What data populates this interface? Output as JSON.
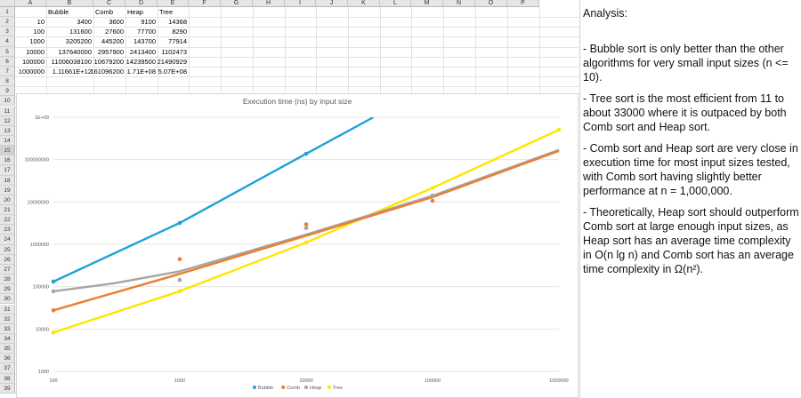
{
  "spreadsheet": {
    "columns": [
      "A",
      "B",
      "C",
      "D",
      "E",
      "F",
      "G",
      "H",
      "I",
      "J",
      "K",
      "L",
      "M",
      "N",
      "O",
      "P"
    ],
    "rows": [
      "1",
      "2",
      "3",
      "4",
      "5",
      "6",
      "7",
      "8",
      "9",
      "10",
      "11",
      "12",
      "13",
      "14",
      "15",
      "16",
      "17",
      "18",
      "19",
      "20",
      "21",
      "22",
      "23",
      "24",
      "25",
      "26",
      "27",
      "28",
      "29",
      "30",
      "31",
      "32",
      "33",
      "34",
      "35",
      "36",
      "37",
      "38",
      "39"
    ],
    "selected_row": "15",
    "table": {
      "headers": [
        "Bubble",
        "Comb",
        "Heap",
        "Tree"
      ],
      "rows": [
        [
          "10",
          "3400",
          "3600",
          "9100",
          "14368"
        ],
        [
          "100",
          "131600",
          "27600",
          "77700",
          "8290"
        ],
        [
          "1000",
          "3205200",
          "445200",
          "143700",
          "77914"
        ],
        [
          "10000",
          "137640000",
          "2957900",
          "2413400",
          "1102473"
        ],
        [
          "100000",
          "11006038100",
          "10679200",
          "14239500",
          "21490929"
        ],
        [
          "1000000",
          "1.11661E+12",
          "161096200",
          "1.71E+08",
          "5.07E+08"
        ]
      ]
    }
  },
  "chart_data": {
    "type": "scatter",
    "title": "Execution time (ns) by input size",
    "x_scale": "log",
    "y_scale": "log",
    "xlim": [
      100,
      1000000
    ],
    "ylim": [
      1000,
      1000000000
    ],
    "x_ticks": [
      "100",
      "1000",
      "10000",
      "100000",
      "1000000"
    ],
    "y_ticks": [
      "1000",
      "10000",
      "100000",
      "1000000",
      "10000000",
      "100000000",
      "1E+09"
    ],
    "legend_position": "bottom",
    "grid": "horizontal",
    "series": [
      {
        "name": "Bubble",
        "color": "#1fa2d8",
        "x": [
          100,
          1000,
          10000
        ],
        "y": [
          131600,
          3205200,
          137640000
        ]
      },
      {
        "name": "Comb",
        "color": "#ed7d31",
        "x": [
          100,
          1000,
          10000,
          100000
        ],
        "y": [
          27600,
          445200,
          2957900,
          10679200
        ]
      },
      {
        "name": "Heap",
        "color": "#a5a5a5",
        "x": [
          100,
          1000,
          10000,
          100000
        ],
        "y": [
          77700,
          143700,
          2413400,
          14239500
        ]
      },
      {
        "name": "Tree",
        "color": "#ffe600",
        "x": [
          100,
          1000,
          10000,
          100000,
          1000000
        ],
        "y": [
          8290,
          77914,
          1102473,
          21490929,
          507000000
        ]
      }
    ],
    "trendlines": [
      {
        "series": "Bubble",
        "x": [
          100,
          1000,
          10000,
          34000
        ],
        "y": [
          131600,
          3205200,
          137640000,
          1000000000
        ]
      },
      {
        "series": "Comb",
        "x": [
          100,
          1000,
          10000,
          100000,
          1000000
        ],
        "y": [
          27600,
          200000,
          1600000,
          13000000,
          160000000
        ]
      },
      {
        "series": "Heap",
        "x": [
          100,
          300,
          1000,
          10000,
          100000,
          1000000
        ],
        "y": [
          77700,
          120000,
          230000,
          1700000,
          14000000,
          170000000
        ]
      },
      {
        "series": "Tree",
        "x": [
          100,
          1000,
          10000,
          100000,
          1000000
        ],
        "y": [
          8290,
          77914,
          1102473,
          21490929,
          507000000
        ]
      }
    ]
  },
  "notes": {
    "heading": "Analysis:",
    "paragraphs": [
      "- Bubble sort is only better than the other algorithms for very small input sizes (n <= 10).",
      "- Tree sort is the most efficient from 11 to about 33000 where it is outpaced by both Comb sort and Heap sort.",
      "- Comb sort and Heap sort are very close in execution time for most input sizes tested, with Comb sort having slightly better performance at n = 1,000,000.",
      "- Theoretically, Heap sort should outperform Comb sort at large enough input sizes, as Heap sort has an average time complexity in O(n lg n) and Comb sort has an average time complexity in Ω(n²)."
    ]
  }
}
